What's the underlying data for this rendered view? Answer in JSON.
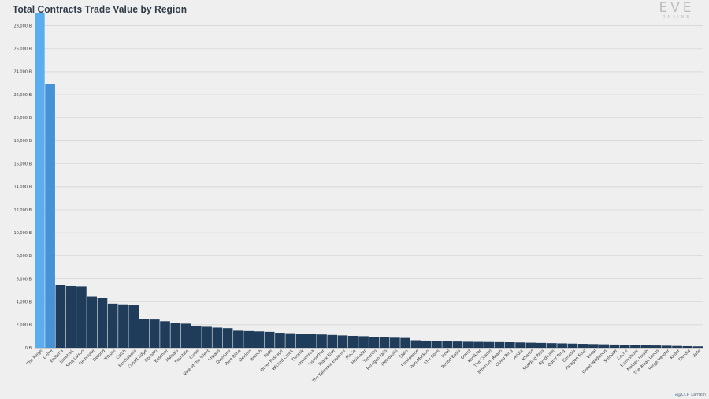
{
  "logo": {
    "mark": "EVE",
    "sub": "ONLINE"
  },
  "credit": "@CCP_Larrikin",
  "colors": {
    "highlight": "#5aaef0",
    "highlight2": "#4792d6",
    "bar": "#1f3c5a",
    "grid": "#d6d6d6",
    "background": "#efefef"
  },
  "chart_data": {
    "type": "bar",
    "title": "Total Contracts Trade Value by Region",
    "xlabel": "",
    "ylabel": "",
    "ylim": [
      0,
      29000
    ],
    "y_ticks": [
      0,
      2000,
      4000,
      6000,
      8000,
      10000,
      12000,
      14000,
      16000,
      18000,
      20000,
      22000,
      24000,
      26000,
      28000
    ],
    "y_tick_labels": [
      "0 B",
      "2,000 B",
      "4,000 B",
      "6,000 B",
      "8,000 B",
      "10,000 B",
      "12,000 B",
      "14,000 B",
      "16,000 B",
      "18,000 B",
      "20,000 B",
      "22,000 B",
      "24,000 B",
      "26,000 B",
      "28,000 B"
    ],
    "grid": true,
    "categories": [
      "The Forge",
      "Delve",
      "Esoteria",
      "Lonetrek",
      "Sinq Laison",
      "Geminate",
      "Detorid",
      "Tribute",
      "Catch",
      "Feythabolis",
      "Cobalt Edge",
      "Domain",
      "Essence",
      "Malpais",
      "Fountain",
      "Curse",
      "Vale of the Silent",
      "Impass",
      "Querious",
      "Pure Blind",
      "Deklein",
      "Branch",
      "Fade",
      "Outer Passage",
      "Wicked Creek",
      "Derelik",
      "Immensea",
      "Insmother",
      "Black Rise",
      "The Kalevala Expanse",
      "Placid",
      "Heimatar",
      "Tenerifis",
      "Perrigen Falls",
      "Metropolis",
      "Stain",
      "Providence",
      "Tash-Murkon",
      "The Spire",
      "Tenal",
      "Period Basis",
      "Omist",
      "Kor-Azor",
      "The Citadel",
      "Etherium Reach",
      "Cloud Ring",
      "Aridia",
      "Khanid",
      "Scalding Pass",
      "Syndicate",
      "Outer Ring",
      "Genesis",
      "Paragon Soul",
      "Venal",
      "Great Wildlands",
      "Solitude",
      "Cache",
      "Everyshore",
      "Molden Heath",
      "The Bleak Lands",
      "Verge Vendor",
      "Kador",
      "Devoid",
      "Vaile"
    ],
    "values": [
      29100,
      22900,
      5450,
      5350,
      5320,
      4420,
      4320,
      3850,
      3720,
      3700,
      2480,
      2460,
      2310,
      2150,
      2100,
      1920,
      1820,
      1750,
      1700,
      1480,
      1450,
      1420,
      1380,
      1300,
      1260,
      1230,
      1180,
      1150,
      1110,
      1070,
      1030,
      1000,
      950,
      900,
      870,
      850,
      650,
      620,
      600,
      560,
      540,
      520,
      510,
      500,
      490,
      480,
      460,
      440,
      420,
      400,
      380,
      360,
      340,
      320,
      300,
      280,
      260,
      240,
      220,
      200,
      180,
      160,
      140,
      120
    ]
  }
}
